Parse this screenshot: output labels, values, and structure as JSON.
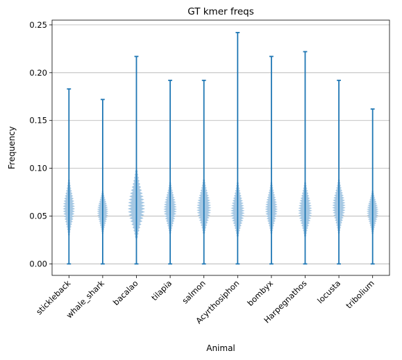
{
  "chart_data": {
    "type": "violin",
    "title": "GT kmer freqs",
    "xlabel": "Animal",
    "ylabel": "Frequency",
    "ylim": [
      -0.012,
      0.255
    ],
    "yticks": [
      "0.00",
      "0.05",
      "0.10",
      "0.15",
      "0.20",
      "0.25"
    ],
    "ytick_values": [
      0.0,
      0.05,
      0.1,
      0.15,
      0.2,
      0.25
    ],
    "grid": "horizontal",
    "colors": {
      "line": "#1f77b4",
      "body": "#a6c8e3",
      "grid": "#b0b0b0"
    },
    "categories": [
      "stickleback",
      "whale_shark",
      "bacalao",
      "tilapia",
      "salmon",
      "Acyrthosiphon",
      "bombyx",
      "Harpegnathos",
      "locusta",
      "tribolium"
    ],
    "series": [
      {
        "category": "stickleback",
        "min": 0.0,
        "max": 0.183,
        "body_low": 0.028,
        "body_high": 0.09,
        "center": 0.058,
        "max_half_width": 0.18
      },
      {
        "category": "whale_shark",
        "min": 0.0,
        "max": 0.172,
        "body_low": 0.03,
        "body_high": 0.078,
        "center": 0.055,
        "max_half_width": 0.17
      },
      {
        "category": "bacalao",
        "min": 0.0,
        "max": 0.217,
        "body_low": 0.025,
        "body_high": 0.1,
        "center": 0.058,
        "max_half_width": 0.26
      },
      {
        "category": "tilapia",
        "min": 0.0,
        "max": 0.192,
        "body_low": 0.03,
        "body_high": 0.087,
        "center": 0.057,
        "max_half_width": 0.2
      },
      {
        "category": "salmon",
        "min": 0.0,
        "max": 0.192,
        "body_low": 0.03,
        "body_high": 0.09,
        "center": 0.058,
        "max_half_width": 0.22
      },
      {
        "category": "Acyrthosiphon",
        "min": 0.0,
        "max": 0.242,
        "body_low": 0.027,
        "body_high": 0.087,
        "center": 0.054,
        "max_half_width": 0.21
      },
      {
        "category": "bombyx",
        "min": 0.0,
        "max": 0.217,
        "body_low": 0.03,
        "body_high": 0.087,
        "center": 0.057,
        "max_half_width": 0.19
      },
      {
        "category": "Harpegnathos",
        "min": 0.0,
        "max": 0.222,
        "body_low": 0.027,
        "body_high": 0.087,
        "center": 0.055,
        "max_half_width": 0.21
      },
      {
        "category": "locusta",
        "min": 0.0,
        "max": 0.192,
        "body_low": 0.03,
        "body_high": 0.09,
        "center": 0.06,
        "max_half_width": 0.2
      },
      {
        "category": "tribolium",
        "min": 0.0,
        "max": 0.162,
        "body_low": 0.03,
        "body_high": 0.078,
        "center": 0.055,
        "max_half_width": 0.18
      }
    ]
  }
}
